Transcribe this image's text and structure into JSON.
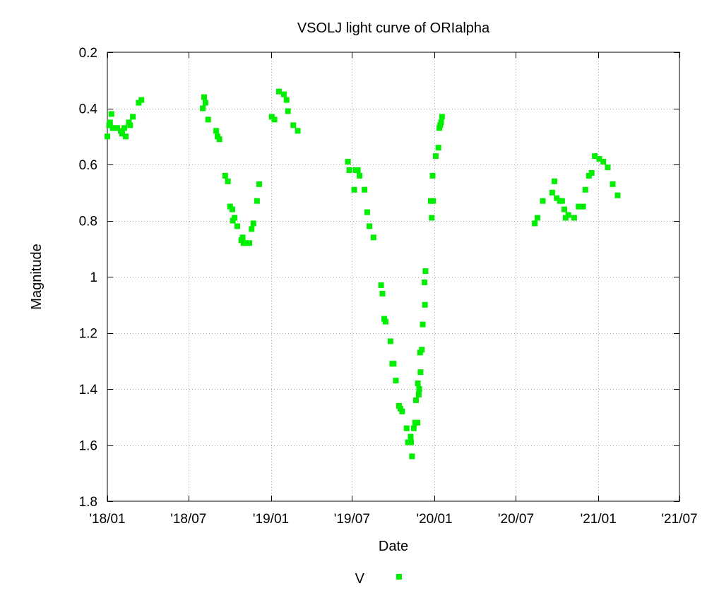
{
  "chart_data": {
    "type": "scatter",
    "title": "VSOLJ light curve of ORIalpha",
    "xlabel": "Date",
    "ylabel": "Magnitude",
    "x_scale": "date",
    "x_range": [
      "2018-01-01",
      "2021-07-01"
    ],
    "x_ticks": [
      "2018-01-01",
      "2018-07-01",
      "2019-01-01",
      "2019-07-01",
      "2020-01-01",
      "2020-07-01",
      "2021-01-01",
      "2021-07-01"
    ],
    "x_tick_labels": [
      "'18/01",
      "'18/07",
      "'19/01",
      "'19/07",
      "'20/01",
      "'20/07",
      "'21/01",
      "'21/07"
    ],
    "y_range": [
      0.2,
      1.8
    ],
    "y_inverted": true,
    "y_ticks": [
      0.2,
      0.4,
      0.6,
      0.8,
      1.0,
      1.2,
      1.4,
      1.6,
      1.8
    ],
    "y_tick_labels": [
      "0.2",
      "0.4",
      "0.6",
      "0.8",
      "1",
      "1.2",
      "1.4",
      "1.6",
      "1.8"
    ],
    "grid": true,
    "legend_position": "bottom",
    "series": [
      {
        "name": "V",
        "color": "#00ee00",
        "marker": "square",
        "points": [
          [
            "2018-01-01",
            0.5
          ],
          [
            "2018-01-05",
            0.46
          ],
          [
            "2018-01-07",
            0.45
          ],
          [
            "2018-01-10",
            0.42
          ],
          [
            "2018-01-13",
            0.47
          ],
          [
            "2018-01-18",
            0.47
          ],
          [
            "2018-01-23",
            0.47
          ],
          [
            "2018-01-31",
            0.48
          ],
          [
            "2018-02-03",
            0.49
          ],
          [
            "2018-02-08",
            0.47
          ],
          [
            "2018-02-11",
            0.5
          ],
          [
            "2018-02-18",
            0.45
          ],
          [
            "2018-02-21",
            0.46
          ],
          [
            "2018-02-27",
            0.43
          ],
          [
            "2018-03-12",
            0.38
          ],
          [
            "2018-03-18",
            0.37
          ],
          [
            "2018-08-02",
            0.4
          ],
          [
            "2018-08-05",
            0.36
          ],
          [
            "2018-08-08",
            0.38
          ],
          [
            "2018-08-14",
            0.44
          ],
          [
            "2018-09-01",
            0.48
          ],
          [
            "2018-09-04",
            0.5
          ],
          [
            "2018-09-08",
            0.51
          ],
          [
            "2018-09-21",
            0.64
          ],
          [
            "2018-09-27",
            0.66
          ],
          [
            "2018-10-02",
            0.75
          ],
          [
            "2018-10-07",
            0.76
          ],
          [
            "2018-10-08",
            0.8
          ],
          [
            "2018-10-12",
            0.79
          ],
          [
            "2018-10-18",
            0.82
          ],
          [
            "2018-10-27",
            0.87
          ],
          [
            "2018-10-30",
            0.86
          ],
          [
            "2018-11-01",
            0.88
          ],
          [
            "2018-11-07",
            0.88
          ],
          [
            "2018-11-14",
            0.88
          ],
          [
            "2018-11-19",
            0.83
          ],
          [
            "2018-11-23",
            0.81
          ],
          [
            "2018-12-01",
            0.73
          ],
          [
            "2018-12-06",
            0.67
          ],
          [
            "2019-01-03",
            0.43
          ],
          [
            "2019-01-09",
            0.44
          ],
          [
            "2019-01-19",
            0.34
          ],
          [
            "2019-01-30",
            0.35
          ],
          [
            "2019-02-05",
            0.37
          ],
          [
            "2019-02-08",
            0.41
          ],
          [
            "2019-02-20",
            0.46
          ],
          [
            "2019-03-02",
            0.48
          ],
          [
            "2019-06-22",
            0.59
          ],
          [
            "2019-06-25",
            0.62
          ],
          [
            "2019-07-06",
            0.69
          ],
          [
            "2019-07-09",
            0.62
          ],
          [
            "2019-07-14",
            0.62
          ],
          [
            "2019-07-18",
            0.64
          ],
          [
            "2019-07-29",
            0.69
          ],
          [
            "2019-08-04",
            0.77
          ],
          [
            "2019-08-09",
            0.82
          ],
          [
            "2019-08-18",
            0.86
          ],
          [
            "2019-09-04",
            1.03
          ],
          [
            "2019-09-07",
            1.06
          ],
          [
            "2019-09-11",
            1.15
          ],
          [
            "2019-09-14",
            1.16
          ],
          [
            "2019-09-25",
            1.23
          ],
          [
            "2019-09-29",
            1.31
          ],
          [
            "2019-10-02",
            1.31
          ],
          [
            "2019-10-07",
            1.37
          ],
          [
            "2019-10-14",
            1.46
          ],
          [
            "2019-10-17",
            1.47
          ],
          [
            "2019-10-21",
            1.48
          ],
          [
            "2019-10-31",
            1.54
          ],
          [
            "2019-11-03",
            1.59
          ],
          [
            "2019-11-07",
            1.59
          ],
          [
            "2019-11-09",
            1.57
          ],
          [
            "2019-11-10",
            1.59
          ],
          [
            "2019-11-12",
            1.64
          ],
          [
            "2019-11-16",
            1.54
          ],
          [
            "2019-11-19",
            1.52
          ],
          [
            "2019-11-21",
            1.44
          ],
          [
            "2019-11-24",
            1.52
          ],
          [
            "2019-11-25",
            1.38
          ],
          [
            "2019-11-27",
            1.42
          ],
          [
            "2019-11-28",
            1.4
          ],
          [
            "2019-11-30",
            1.27
          ],
          [
            "2019-12-01",
            1.34
          ],
          [
            "2019-12-04",
            1.26
          ],
          [
            "2019-12-06",
            1.17
          ],
          [
            "2019-12-10",
            1.02
          ],
          [
            "2019-12-11",
            1.1
          ],
          [
            "2019-12-12",
            0.98
          ],
          [
            "2019-12-24",
            0.73
          ],
          [
            "2019-12-26",
            0.79
          ],
          [
            "2019-12-28",
            0.64
          ],
          [
            "2019-12-29",
            0.73
          ],
          [
            "2020-01-04",
            0.57
          ],
          [
            "2020-01-10",
            0.54
          ],
          [
            "2020-01-12",
            0.47
          ],
          [
            "2020-01-14",
            0.46
          ],
          [
            "2020-01-16",
            0.45
          ],
          [
            "2020-01-18",
            0.43
          ],
          [
            "2020-08-12",
            0.81
          ],
          [
            "2020-08-18",
            0.79
          ],
          [
            "2020-08-30",
            0.73
          ],
          [
            "2020-09-20",
            0.7
          ],
          [
            "2020-09-25",
            0.66
          ],
          [
            "2020-09-30",
            0.72
          ],
          [
            "2020-10-07",
            0.73
          ],
          [
            "2020-10-12",
            0.73
          ],
          [
            "2020-10-17",
            0.76
          ],
          [
            "2020-10-20",
            0.79
          ],
          [
            "2020-10-26",
            0.78
          ],
          [
            "2020-11-08",
            0.79
          ],
          [
            "2020-11-18",
            0.75
          ],
          [
            "2020-11-28",
            0.75
          ],
          [
            "2020-12-03",
            0.69
          ],
          [
            "2020-12-11",
            0.64
          ],
          [
            "2020-12-17",
            0.63
          ],
          [
            "2020-12-24",
            0.57
          ],
          [
            "2021-01-03",
            0.58
          ],
          [
            "2021-01-12",
            0.59
          ],
          [
            "2021-01-22",
            0.61
          ],
          [
            "2021-02-02",
            0.67
          ],
          [
            "2021-02-13",
            0.71
          ]
        ]
      }
    ]
  }
}
